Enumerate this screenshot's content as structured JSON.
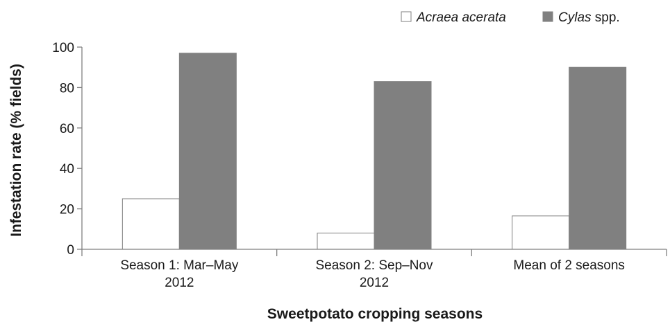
{
  "chart_data": {
    "type": "bar",
    "categories": [
      [
        "Season 1: Mar–May",
        "2012"
      ],
      [
        "Season 2: Sep–Nov",
        "2012"
      ],
      [
        "Mean of 2 seasons"
      ]
    ],
    "series": [
      {
        "name": "Acraea acerata",
        "name_italic": "Acraea acerata",
        "name_suffix": "",
        "color": "#ffffff",
        "stroke": "#7f7f7f",
        "values": [
          25,
          8,
          16.5
        ]
      },
      {
        "name": "Cylas spp.",
        "name_italic": "Cylas",
        "name_suffix": " spp.",
        "color": "#808080",
        "stroke": "#808080",
        "values": [
          97,
          83,
          90
        ]
      }
    ],
    "xlabel": "Sweetpotato cropping seasons",
    "ylabel": "Infestation rate (% fields)",
    "ylim": [
      0,
      100
    ],
    "yticks": [
      0,
      20,
      40,
      60,
      80,
      100
    ],
    "grid": false,
    "legend_position": "top-right"
  }
}
